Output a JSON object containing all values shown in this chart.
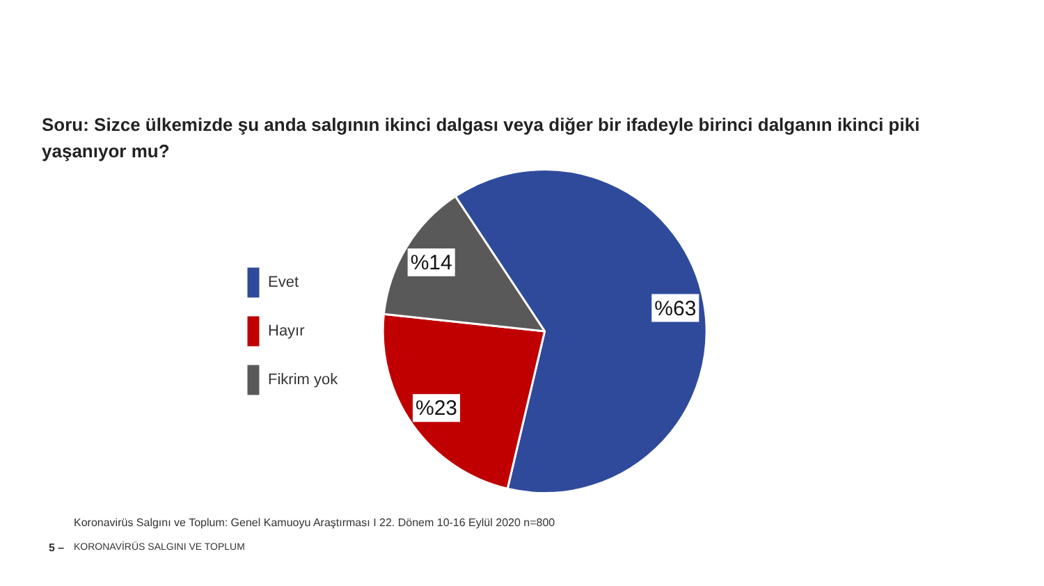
{
  "chart_data": {
    "type": "pie",
    "title": "Soru: Sizce ülkemizde şu anda salgının ikinci dalgası veya diğer bir ifadeyle birinci dalganın ikinci piki yaşanıyor mu?",
    "categories": [
      "Evet",
      "Hayır",
      "Fikrim yok"
    ],
    "values": [
      63,
      23,
      14
    ],
    "colors": [
      "#2f4a9b",
      "#c00000",
      "#595959"
    ],
    "value_labels": [
      "%63",
      "%23",
      "%14"
    ],
    "legend": "left",
    "annotations": [
      "Koronavirüs Salgını ve Toplum: Genel Kamuoyu Araştırması I 22. Dönem 10-16 Eylül 2020 n=800",
      "5 –",
      "KORONAVİRÜS SALGINI VE TOPLUM"
    ]
  }
}
